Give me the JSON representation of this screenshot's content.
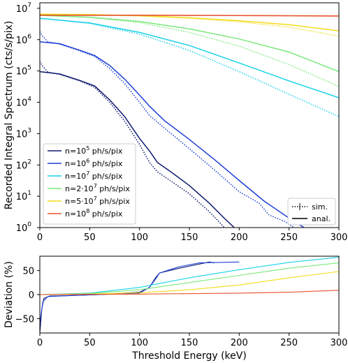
{
  "chart_data": [
    {
      "type": "line",
      "xlabel": "",
      "ylabel": "Recorded Integral Spectrum (cts/s/pix)",
      "xlim": [
        0,
        300
      ],
      "ylim": [
        1,
        15000000
      ],
      "yscale": "log",
      "x_ticks": [
        "0",
        "50",
        "100",
        "150",
        "200",
        "250",
        "300"
      ],
      "y_ticks": [
        {
          "base": "10",
          "exp": "0"
        },
        {
          "base": "10",
          "exp": "1"
        },
        {
          "base": "10",
          "exp": "2"
        },
        {
          "base": "10",
          "exp": "3"
        },
        {
          "base": "10",
          "exp": "4"
        },
        {
          "base": "10",
          "exp": "5"
        },
        {
          "base": "10",
          "exp": "6"
        },
        {
          "base": "10",
          "exp": "7"
        }
      ],
      "legend_position": "lower-left",
      "series": [
        {
          "name_main": "n=10",
          "name_sup": "5",
          "name_tail": " ph/s/pix",
          "color": "#0d1a6e",
          "analytical": [
            [
              0,
              95000
            ],
            [
              20,
              80000
            ],
            [
              40,
              50000
            ],
            [
              55,
              33000
            ],
            [
              70,
              12000
            ],
            [
              85,
              3500
            ],
            [
              100,
              700
            ],
            [
              110,
              280
            ],
            [
              118,
              120
            ],
            [
              130,
              65
            ],
            [
              150,
              22
            ],
            [
              170,
              6
            ],
            [
              185,
              2
            ],
            [
              195,
              1
            ]
          ],
          "simulated": [
            [
              0,
              200000
            ],
            [
              3,
              140000
            ],
            [
              8,
              92000
            ],
            [
              20,
              78000
            ],
            [
              40,
              48000
            ],
            [
              55,
              30000
            ],
            [
              70,
              10000
            ],
            [
              85,
              2500
            ],
            [
              100,
              450
            ],
            [
              110,
              120
            ],
            [
              118,
              60
            ],
            [
              130,
              33
            ],
            [
              150,
              12
            ],
            [
              170,
              3.2
            ],
            [
              180,
              1.5
            ],
            [
              185,
              1
            ]
          ]
        },
        {
          "name_main": "n=10",
          "name_sup": "6",
          "name_tail": " ph/s/pix",
          "color": "#1e3fd6",
          "analytical": [
            [
              0,
              850000
            ],
            [
              20,
              740000
            ],
            [
              40,
              460000
            ],
            [
              55,
              310000
            ],
            [
              70,
              150000
            ],
            [
              85,
              55000
            ],
            [
              100,
              17000
            ],
            [
              110,
              7500
            ],
            [
              125,
              2600
            ],
            [
              150,
              650
            ],
            [
              175,
              150
            ],
            [
              200,
              32
            ],
            [
              225,
              7
            ],
            [
              250,
              2
            ],
            [
              265,
              1
            ]
          ],
          "simulated": [
            [
              0,
              1800000
            ],
            [
              3,
              1250000
            ],
            [
              8,
              860000
            ],
            [
              20,
              720000
            ],
            [
              40,
              440000
            ],
            [
              55,
              290000
            ],
            [
              70,
              120000
            ],
            [
              85,
              40000
            ],
            [
              100,
              10000
            ],
            [
              110,
              3800
            ],
            [
              125,
              1500
            ],
            [
              150,
              330
            ],
            [
              175,
              70
            ],
            [
              200,
              14
            ],
            [
              220,
              6
            ],
            [
              230,
              2.5
            ],
            [
              245,
              1.6
            ],
            [
              255,
              1
            ]
          ]
        },
        {
          "name_main": "n=10",
          "name_sup": "7",
          "name_tail": " ph/s/pix",
          "color": "#19d1e8",
          "analytical": [
            [
              0,
              4800000
            ],
            [
              50,
              3400000
            ],
            [
              100,
              1700000
            ],
            [
              150,
              650000
            ],
            [
              200,
              180000
            ],
            [
              250,
              48000
            ],
            [
              300,
              14000
            ]
          ],
          "simulated": [
            [
              0,
              4800000
            ],
            [
              50,
              3300000
            ],
            [
              100,
              1500000
            ],
            [
              150,
              450000
            ],
            [
              200,
              95000
            ],
            [
              250,
              18000
            ],
            [
              300,
              3500
            ]
          ]
        },
        {
          "name_main": "n=2·10",
          "name_sup": "7",
          "name_tail": " ph/s/pix",
          "color": "#7ae87a",
          "analytical": [
            [
              0,
              6000000
            ],
            [
              50,
              5200000
            ],
            [
              100,
              3800000
            ],
            [
              150,
              2200000
            ],
            [
              200,
              1050000
            ],
            [
              250,
              400000
            ],
            [
              300,
              95000
            ]
          ],
          "simulated": [
            [
              0,
              6000000
            ],
            [
              50,
              5100000
            ],
            [
              100,
              3500000
            ],
            [
              150,
              1700000
            ],
            [
              200,
              620000
            ],
            [
              250,
              160000
            ],
            [
              300,
              32000
            ]
          ]
        },
        {
          "name_main": "n=5·10",
          "name_sup": "7",
          "name_tail": " ph/s/pix",
          "color": "#f2dc1a",
          "analytical": [
            [
              0,
              6500000
            ],
            [
              50,
              6300000
            ],
            [
              100,
              5800000
            ],
            [
              150,
              5000000
            ],
            [
              200,
              4000000
            ],
            [
              250,
              3000000
            ],
            [
              300,
              1900000
            ]
          ],
          "simulated": [
            [
              0,
              6500000
            ],
            [
              50,
              6250000
            ],
            [
              100,
              5700000
            ],
            [
              150,
              4800000
            ],
            [
              200,
              3700000
            ],
            [
              250,
              2500000
            ],
            [
              300,
              1300000
            ]
          ]
        },
        {
          "name_main": "n=10",
          "name_sup": "8",
          "name_tail": " ph/s/pix",
          "color": "#e8522a",
          "analytical": [
            [
              0,
              6000000
            ],
            [
              100,
              6000000
            ],
            [
              200,
              5900000
            ],
            [
              300,
              5700000
            ]
          ],
          "simulated": [
            [
              0,
              6000000
            ],
            [
              100,
              5950000
            ],
            [
              200,
              5850000
            ],
            [
              300,
              5600000
            ]
          ]
        }
      ],
      "style_legend": [
        {
          "label": "sim.",
          "style": "dotted-with-errorbar"
        },
        {
          "label": "anal.",
          "style": "solid"
        }
      ]
    },
    {
      "type": "line",
      "xlabel": "Threshold Energy (keV)",
      "ylabel": "Deviation (%)",
      "xlim": [
        0,
        300
      ],
      "ylim": [
        -80,
        80
      ],
      "x_ticks": [
        "0",
        "50",
        "100",
        "150",
        "200",
        "250",
        "300"
      ],
      "y_ticks": [
        "-50",
        "0",
        "50"
      ],
      "series": [
        {
          "color": "#0d1a6e",
          "points": [
            [
              0,
              -80
            ],
            [
              2,
              -30
            ],
            [
              4,
              -8
            ],
            [
              10,
              -3
            ],
            [
              30,
              -2
            ],
            [
              60,
              0
            ],
            [
              100,
              5
            ],
            [
              110,
              15
            ],
            [
              116,
              35
            ],
            [
              120,
              45
            ],
            [
              140,
              55
            ],
            [
              170,
              68
            ],
            [
              175,
              66
            ]
          ]
        },
        {
          "color": "#1e3fd6",
          "points": [
            [
              0,
              -60
            ],
            [
              3,
              -15
            ],
            [
              8,
              -4
            ],
            [
              30,
              -2
            ],
            [
              60,
              0
            ],
            [
              100,
              3
            ],
            [
              110,
              15
            ],
            [
              117,
              35
            ],
            [
              120,
              45
            ],
            [
              140,
              58
            ],
            [
              160,
              66
            ],
            [
              180,
              67
            ],
            [
              200,
              68
            ]
          ]
        },
        {
          "color": "#19d1e8",
          "points": [
            [
              0,
              0
            ],
            [
              50,
              3
            ],
            [
              100,
              15
            ],
            [
              150,
              35
            ],
            [
              200,
              52
            ],
            [
              250,
              67
            ],
            [
              300,
              78
            ]
          ]
        },
        {
          "color": "#7ae87a",
          "points": [
            [
              0,
              0
            ],
            [
              50,
              2
            ],
            [
              100,
              10
            ],
            [
              150,
              25
            ],
            [
              200,
              40
            ],
            [
              250,
              55
            ],
            [
              300,
              66
            ]
          ]
        },
        {
          "color": "#f2dc1a",
          "points": [
            [
              0,
              0
            ],
            [
              50,
              1
            ],
            [
              100,
              4
            ],
            [
              150,
              10
            ],
            [
              200,
              20
            ],
            [
              250,
              35
            ],
            [
              300,
              48
            ]
          ]
        },
        {
          "color": "#e8522a",
          "points": [
            [
              0,
              0
            ],
            [
              100,
              1
            ],
            [
              200,
              3
            ],
            [
              250,
              5
            ],
            [
              300,
              9
            ]
          ]
        }
      ]
    }
  ]
}
